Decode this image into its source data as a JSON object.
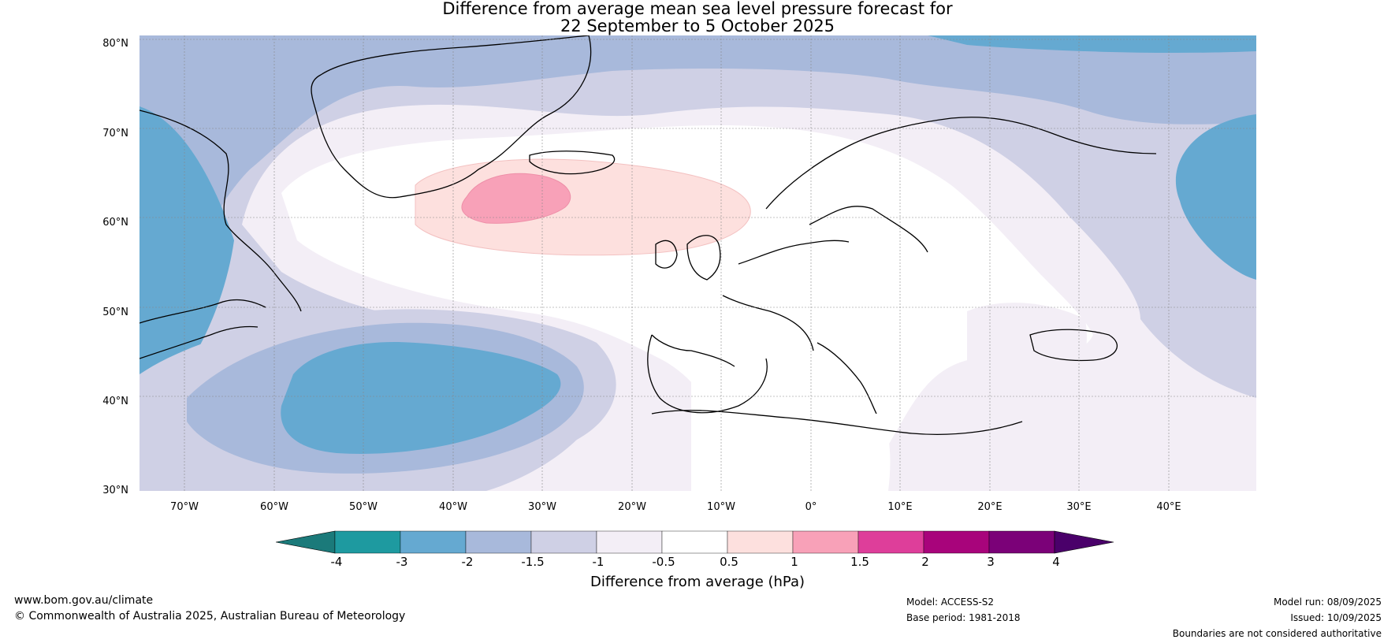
{
  "title_line1": "Difference from average mean sea level pressure forecast for",
  "title_line2": "22 September to 5 October 2025",
  "lat_labels": [
    "80°N",
    "70°N",
    "60°N",
    "50°N",
    "40°N",
    "30°N"
  ],
  "lon_labels": [
    "70°W",
    "60°W",
    "50°W",
    "40°W",
    "30°W",
    "20°W",
    "10°W",
    "0°",
    "10°E",
    "20°E",
    "30°E",
    "40°E"
  ],
  "colorbar": {
    "ticks": [
      "-4",
      "-3",
      "-2",
      "-1.5",
      "-1",
      "-0.5",
      "0.5",
      "1",
      "1.5",
      "2",
      "3",
      "4"
    ],
    "colors": [
      "#1b7a7a",
      "#1e9aa0",
      "#65a9d1",
      "#a8b9db",
      "#cfd0e5",
      "#f3eef6",
      "#ffffff",
      "#fde0de",
      "#f8a1b8",
      "#de3e9a",
      "#a8047b",
      "#7b0178",
      "#4a006a"
    ],
    "label": "Difference from average (hPa)"
  },
  "footer": {
    "url": "www.bom.gov.au/climate",
    "copyright": "© Commonwealth of Australia 2025, Australian Bureau of Meteorology",
    "model": "Model: ACCESS-S2",
    "base_period": "Base period: 1981-2018",
    "model_run": "Model run: 08/09/2025",
    "issued": "Issued: 10/09/2025",
    "disclaimer": "Boundaries are not considered authoritative"
  }
}
